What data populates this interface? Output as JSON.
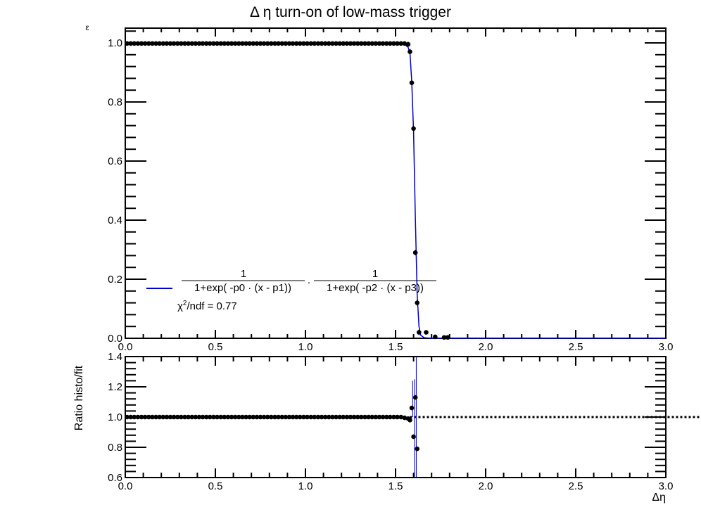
{
  "chart_data": [
    {
      "type": "scatter",
      "title": "Δ η turn-on of low-mass trigger",
      "xlabel": "",
      "ylabel": "ε",
      "xlim": [
        0.0,
        3.0
      ],
      "ylim": [
        0.0,
        1.05
      ],
      "xticks": [
        "0.0",
        "0.5",
        "1.0",
        "1.5",
        "2.0",
        "2.5",
        "3.0"
      ],
      "yticks": [
        "0.0",
        "0.2",
        "0.4",
        "0.6",
        "0.8",
        "1.0"
      ],
      "series": [
        {
          "kind": "points",
          "x": [
            0.01,
            0.03,
            0.05,
            0.07,
            0.09,
            0.11,
            0.13,
            0.15,
            0.17,
            0.19,
            0.21,
            0.23,
            0.25,
            0.27,
            0.29,
            0.31,
            0.33,
            0.35,
            0.37,
            0.39,
            0.41,
            0.43,
            0.45,
            0.47,
            0.49,
            0.51,
            0.53,
            0.55,
            0.57,
            0.59,
            0.61,
            0.63,
            0.65,
            0.67,
            0.69,
            0.71,
            0.73,
            0.75,
            0.77,
            0.79,
            0.81,
            0.83,
            0.85,
            0.87,
            0.89,
            0.91,
            0.93,
            0.95,
            0.97,
            0.99,
            1.01,
            1.03,
            1.05,
            1.07,
            1.09,
            1.11,
            1.13,
            1.15,
            1.17,
            1.19,
            1.21,
            1.23,
            1.25,
            1.27,
            1.29,
            1.31,
            1.33,
            1.35,
            1.37,
            1.39,
            1.41,
            1.43,
            1.45,
            1.47,
            1.49,
            1.51,
            1.53,
            1.55,
            1.57,
            1.58,
            1.59,
            1.6,
            1.61,
            1.62,
            1.63,
            1.67,
            1.72,
            1.77,
            1.79
          ],
          "y": [
            0.998,
            0.998,
            0.998,
            0.998,
            0.998,
            0.998,
            0.998,
            0.998,
            0.998,
            0.998,
            0.998,
            0.998,
            0.998,
            0.998,
            0.998,
            0.998,
            0.998,
            0.998,
            0.998,
            0.998,
            0.998,
            0.998,
            0.998,
            0.998,
            0.998,
            0.998,
            0.998,
            0.998,
            0.998,
            0.998,
            0.998,
            0.998,
            0.998,
            0.998,
            0.998,
            0.998,
            0.998,
            0.998,
            0.998,
            0.998,
            0.998,
            0.998,
            0.998,
            0.998,
            0.998,
            0.998,
            0.998,
            0.998,
            0.998,
            0.998,
            0.998,
            0.998,
            0.998,
            0.998,
            0.998,
            0.998,
            0.998,
            0.998,
            0.998,
            0.998,
            0.998,
            0.998,
            0.998,
            0.998,
            0.998,
            0.998,
            0.998,
            0.998,
            0.998,
            0.998,
            0.998,
            0.998,
            0.998,
            0.998,
            0.998,
            0.998,
            0.998,
            0.998,
            0.995,
            0.97,
            0.865,
            0.71,
            0.29,
            0.12,
            0.02,
            0.02,
            0.005,
            0.003,
            0.003
          ]
        },
        {
          "kind": "fit",
          "x": [
            0.0,
            1.5,
            1.55,
            1.57,
            1.58,
            1.59,
            1.6,
            1.61,
            1.62,
            1.63,
            1.64,
            1.66,
            1.7,
            3.0
          ],
          "y": [
            0.998,
            0.998,
            0.995,
            0.985,
            0.965,
            0.87,
            0.7,
            0.4,
            0.15,
            0.04,
            0.01,
            0.002,
            0.0,
            0.0
          ]
        }
      ],
      "legend": {
        "formula_num": "1",
        "formula_den1": "1+exp( -p0 · (x - p1))",
        "formula_dot": "·",
        "formula_den2": "1+exp( -p2 · (x - p3))",
        "chi2_prefix": "χ",
        "chi2_sup": "2",
        "chi2_rest": "/ndf = 0.77",
        "placement": "lower-left"
      },
      "colors": {
        "fit": "#0000cc",
        "points": "#000000"
      }
    },
    {
      "type": "scatter",
      "title": "",
      "xlabel": "Δη",
      "ylabel": "Ratio histo/fit",
      "xlim": [
        0.0,
        3.0
      ],
      "ylim": [
        0.6,
        1.4
      ],
      "xticks": [
        "0.0",
        "0.5",
        "1.0",
        "1.5",
        "2.0",
        "2.5",
        "3.0"
      ],
      "yticks": [
        "0.6",
        "0.8",
        "1.0",
        "1.2",
        "1.4"
      ],
      "reference_line": 1.0,
      "series": [
        {
          "kind": "points",
          "x": [
            0.01,
            0.03,
            0.05,
            0.07,
            0.09,
            0.11,
            0.13,
            0.15,
            0.17,
            0.19,
            0.21,
            0.23,
            0.25,
            0.27,
            0.29,
            0.31,
            0.33,
            0.35,
            0.37,
            0.39,
            0.41,
            0.43,
            0.45,
            0.47,
            0.49,
            0.51,
            0.53,
            0.55,
            0.57,
            0.59,
            0.61,
            0.63,
            0.65,
            0.67,
            0.69,
            0.71,
            0.73,
            0.75,
            0.77,
            0.79,
            0.81,
            0.83,
            0.85,
            0.87,
            0.89,
            0.91,
            0.93,
            0.95,
            0.97,
            0.99,
            1.01,
            1.03,
            1.05,
            1.07,
            1.09,
            1.11,
            1.13,
            1.15,
            1.17,
            1.19,
            1.21,
            1.23,
            1.25,
            1.27,
            1.29,
            1.31,
            1.33,
            1.35,
            1.37,
            1.39,
            1.41,
            1.43,
            1.45,
            1.47,
            1.49,
            1.51,
            1.53,
            1.55,
            1.57,
            1.58,
            1.59,
            1.6,
            1.61,
            1.62
          ],
          "y": [
            1.0,
            1.0,
            1.0,
            1.0,
            1.0,
            1.0,
            1.0,
            1.0,
            1.0,
            1.0,
            1.0,
            1.0,
            1.0,
            1.0,
            1.0,
            1.0,
            1.0,
            1.0,
            1.0,
            1.0,
            1.0,
            1.0,
            1.0,
            1.0,
            1.0,
            1.0,
            1.0,
            1.0,
            1.0,
            1.0,
            1.0,
            1.0,
            1.0,
            1.0,
            1.0,
            1.0,
            1.0,
            1.0,
            1.0,
            1.0,
            1.0,
            1.0,
            1.0,
            1.0,
            1.0,
            1.0,
            1.0,
            1.0,
            1.0,
            1.0,
            1.0,
            1.0,
            1.0,
            1.0,
            1.0,
            1.0,
            1.0,
            1.0,
            1.0,
            1.0,
            1.0,
            1.0,
            1.0,
            1.0,
            1.0,
            1.0,
            1.0,
            1.0,
            1.0,
            1.0,
            1.0,
            1.0,
            1.0,
            1.0,
            1.0,
            1.0,
            1.0,
            0.995,
            0.99,
            0.98,
            1.06,
            0.87,
            1.13,
            0.79
          ]
        }
      ],
      "colors": {
        "errorbar": "#0000cc",
        "points": "#000000",
        "reference": "#000000"
      }
    }
  ]
}
